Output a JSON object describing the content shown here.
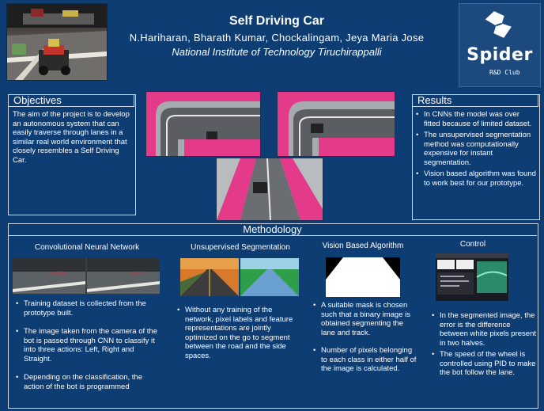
{
  "header": {
    "title": "Self Driving Car",
    "authors": "N.Hariharan, Bharath Kumar, Chockalingam, Jeya Maria Jose",
    "institution": "National Institute of Technology Tiruchirappalli",
    "logo_text": "Spider",
    "logo_sub": "R&D Club"
  },
  "objectives": {
    "heading": "Objectives",
    "text": "The aim of the project is to develop an autonomous system that can easily traverse through lanes in a similar real world environment that closely resembles a Self Driving Car."
  },
  "results": {
    "heading": "Results",
    "items": [
      "In CNNs the model was over fitted because of limited dataset.",
      "The unsupervised segmentation method was computationally expensive for instant segmentation.",
      "Vision based algorithm was found to work best for our prototype."
    ]
  },
  "methodology": {
    "heading": "Methodology",
    "cnn": {
      "title": "Convolutional Neural Network",
      "overlay_left": "Straight",
      "overlay_right": "Right",
      "items": [
        "Training dataset is collected from the prototype built.",
        "The image taken from the camera of the bot is passed through CNN to classify it into three actions: Left, Right and Straight.",
        "Depending on the classification, the action of the bot is programmed"
      ]
    },
    "seg": {
      "title": "Unsupervised Segmentation",
      "items": [
        "Without any training of the network, pixel labels and feature representations are jointly optimized on the go to segment between the road and the side spaces."
      ]
    },
    "vision": {
      "title": "Vision Based Algorithm",
      "items": [
        "A suitable mask is chosen such that a binary image is obtained segmenting the lane and track.",
        "Number of pixels belonging to each class in either half of the image is calculated."
      ]
    },
    "control": {
      "title": "Control",
      "items": [
        "In the segmented image, the error is the difference between white pixels present in two halves.",
        "The speed of the wheel is controlled using PID to make the bot follow the lane."
      ]
    }
  }
}
